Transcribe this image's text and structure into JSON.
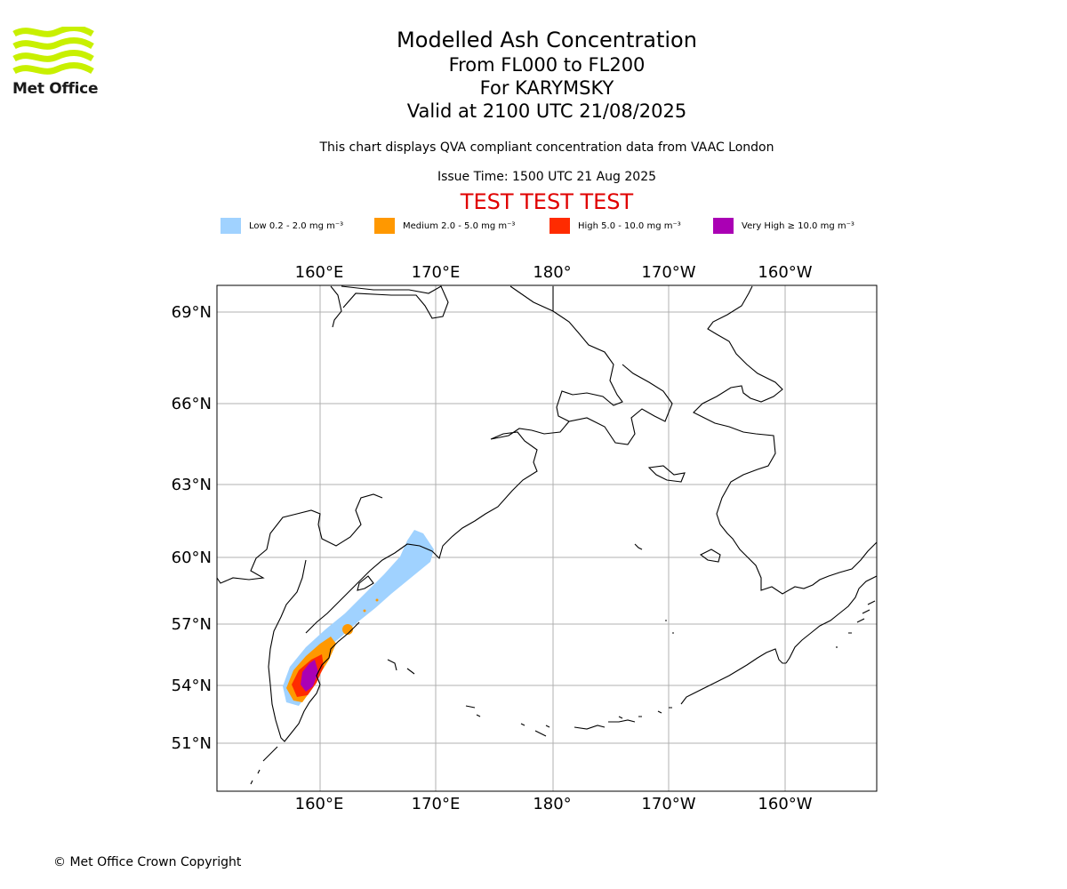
{
  "logo": {
    "text": "Met Office",
    "icon": "met-office-waves-logo"
  },
  "titles": {
    "main": "Modelled Ash Concentration",
    "levels": "From FL000 to FL200",
    "volcano": "For KARYMSKY",
    "valid": "Valid at 2100 UTC 21/08/2025"
  },
  "description": "This chart displays QVA compliant concentration data from VAAC London",
  "issue_time": "Issue Time: 1500 UTC 21 Aug 2025",
  "test_banner": "TEST TEST TEST",
  "legend": [
    {
      "label": "Low 0.2 - 2.0 mg m⁻³",
      "color": "#a0d2ff"
    },
    {
      "label": "Medium 2.0 - 5.0 mg m⁻³",
      "color": "#ff9800"
    },
    {
      "label": "High 5.0 - 10.0 mg m⁻³",
      "color": "#ff2b00"
    },
    {
      "label": "Very High ≥ 10.0 mg m⁻³",
      "color": "#aa00b4"
    }
  ],
  "map": {
    "lon_labels": [
      "160°E",
      "170°E",
      "180°",
      "170°W",
      "160°W"
    ],
    "lat_labels": [
      "69°N",
      "66°N",
      "63°N",
      "60°N",
      "57°N",
      "54°N",
      "51°N"
    ],
    "gridlines": true
  },
  "copyright": "© Met Office Crown Copyright"
}
